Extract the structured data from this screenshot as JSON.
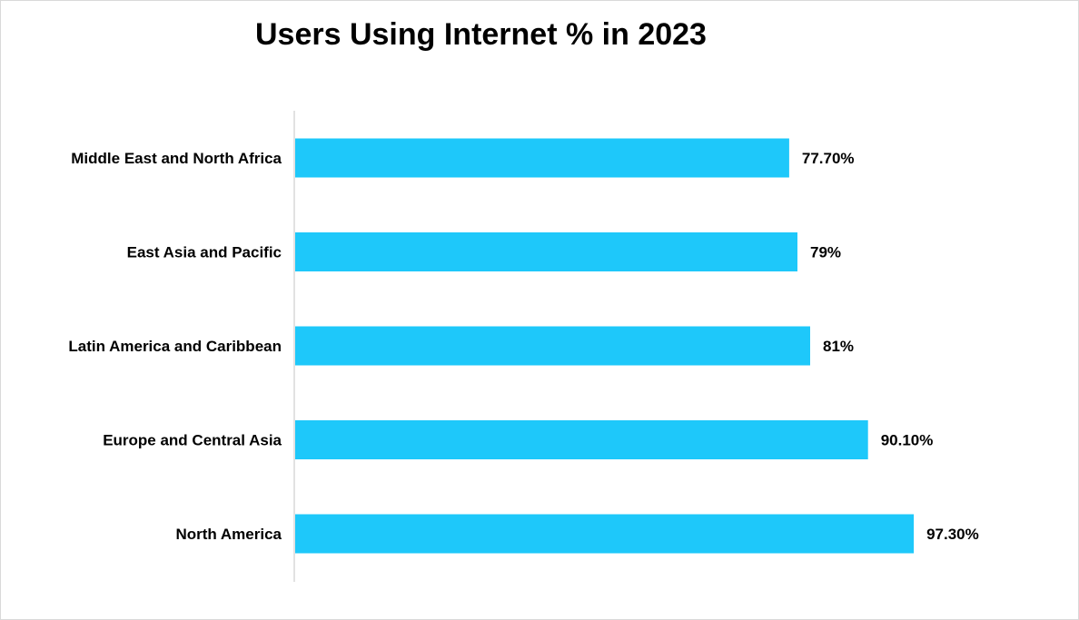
{
  "chart_data": {
    "type": "bar",
    "orientation": "horizontal",
    "title": "Users Using Internet % in 2023",
    "categories": [
      "Middle East and North Africa",
      "East Asia and Pacific",
      "Latin America and Caribbean",
      "Europe and Central Asia",
      "North America"
    ],
    "values": [
      77.7,
      79,
      81,
      90.1,
      97.3
    ],
    "value_labels": [
      "77.70%",
      "79%",
      "81%",
      "90.10%",
      "97.30%"
    ],
    "xlim": [
      0,
      100
    ],
    "xlabel": "",
    "ylabel": "",
    "grid": false,
    "legend": "none",
    "bar_color": "#1ec8fa"
  }
}
